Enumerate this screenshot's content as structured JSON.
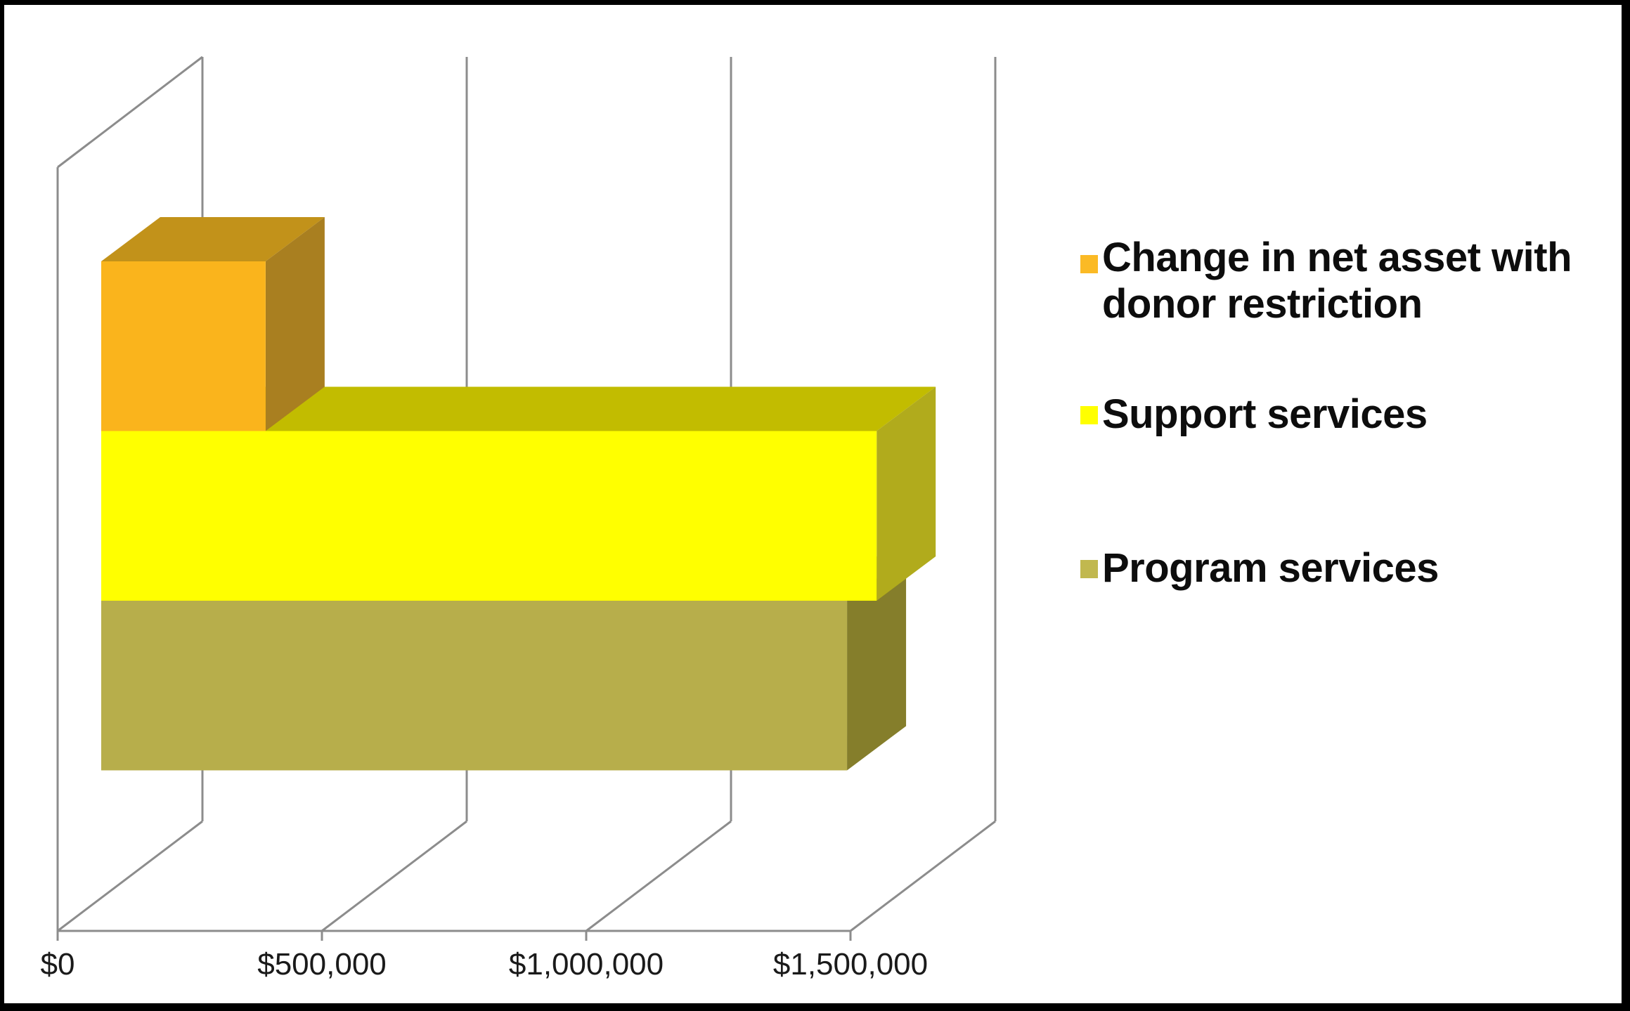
{
  "chart_data": {
    "type": "bar",
    "orientation": "horizontal",
    "projection": "3d",
    "title": "",
    "xlabel": "",
    "ylabel": "",
    "categories": [
      ""
    ],
    "series": [
      {
        "name": "Change in net asset with donor restriction",
        "values": [
          311000
        ]
      },
      {
        "name": "Support services",
        "values": [
          1467000
        ]
      },
      {
        "name": "Program services",
        "values": [
          1411000
        ]
      }
    ],
    "x_ticks": [
      0,
      500000,
      1000000,
      1500000
    ],
    "x_tick_labels": [
      "$0",
      "$500,000",
      "$1,000,000",
      "$1,500,000"
    ],
    "xlim": [
      0,
      1500000
    ],
    "grid": "vertical-gridlines-on-back-wall",
    "legend_position": "right"
  },
  "colors": {
    "background": "#ffffff",
    "frame_border": "#000000",
    "gridline": "#8c8c8c",
    "axis_text": "#1a1a1a",
    "legend_text": "#0d0d0d",
    "series_faces": [
      {
        "front": "#FAB41C",
        "top": "#C2921A",
        "side": "#A97F20",
        "legend": "#FBBA25"
      },
      {
        "front": "#FFFF00",
        "top": "#C2BC00",
        "side": "#B1AB1C",
        "legend": "#FFFF00"
      },
      {
        "front": "#B7AE4B",
        "top": "#B9B050",
        "side": "#857E2B",
        "legend": "#C1B84F"
      }
    ]
  },
  "legend": {
    "items": [
      {
        "label": "Change in net asset with donor restriction",
        "line1": "Change in net asset with",
        "line2": "donor restriction"
      },
      {
        "label": "Support services",
        "line1": "Support services"
      },
      {
        "label": "Program services",
        "line1": "Program services"
      }
    ]
  }
}
